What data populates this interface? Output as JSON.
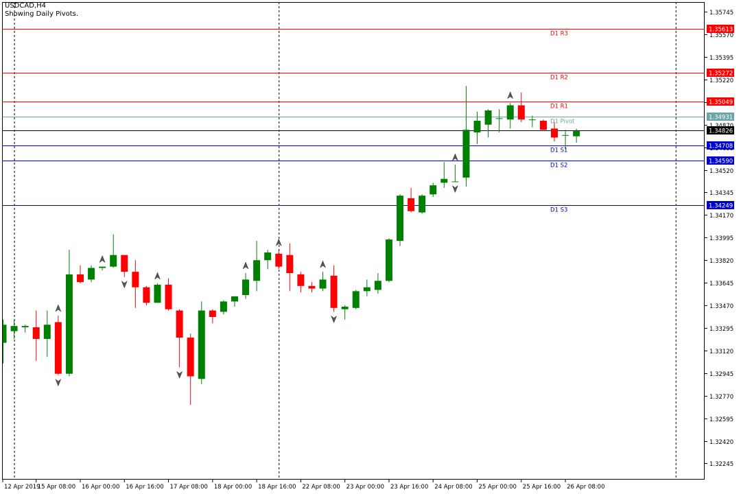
{
  "header": {
    "symbol_timeframe": "USDCAD,H4",
    "subtitle": "Showing Daily Pivots."
  },
  "colors": {
    "bull": "#008000",
    "bear": "#ff0000",
    "resistance": "#ff0000",
    "pivot": "#6aa6a6",
    "support": "#0000cc",
    "current_price": "#000000",
    "frame": "#000000"
  },
  "chart_data": {
    "type": "candlestick",
    "symbol": "USDCAD",
    "timeframe": "H4",
    "ylim": [
      1.3212,
      1.3582
    ],
    "y_ticks": [
      "1.35745",
      "1.35570",
      "1.35395",
      "1.35220",
      "1.35045",
      "1.34870",
      "1.34695",
      "1.34520",
      "1.34345",
      "1.34170",
      "1.33995",
      "1.33820",
      "1.33645",
      "1.33470",
      "1.33295",
      "1.33120",
      "1.32945",
      "1.32770",
      "1.32595",
      "1.32420",
      "1.32245"
    ],
    "x_ticks": [
      {
        "label": "12 Apr 2019",
        "bar": -1
      },
      {
        "label": "15 Apr 08:00",
        "bar": 3
      },
      {
        "label": "16 Apr 00:00",
        "bar": 7
      },
      {
        "label": "16 Apr 16:00",
        "bar": 11
      },
      {
        "label": "17 Apr 08:00",
        "bar": 15
      },
      {
        "label": "18 Apr 00:00",
        "bar": 19
      },
      {
        "label": "18 Apr 16:00",
        "bar": 23
      },
      {
        "label": "22 Apr 08:00",
        "bar": 27
      },
      {
        "label": "23 Apr 00:00",
        "bar": 31
      },
      {
        "label": "23 Apr 16:00",
        "bar": 35
      },
      {
        "label": "24 Apr 08:00",
        "bar": 39
      },
      {
        "label": "25 Apr 00:00",
        "bar": 43
      },
      {
        "label": "25 Apr 16:00",
        "bar": 47
      },
      {
        "label": "26 Apr 08:00",
        "bar": 51
      }
    ],
    "separator_bars": [
      1,
      25,
      61
    ],
    "candles": [
      {
        "o": 1.3318,
        "h": 1.3336,
        "l": 1.3302,
        "c": 1.3332
      },
      {
        "o": 1.3327,
        "h": 1.3336,
        "l": 1.3321,
        "c": 1.3331
      },
      {
        "o": 1.333,
        "h": 1.3332,
        "l": 1.3326,
        "c": 1.3331
      },
      {
        "o": 1.333,
        "h": 1.3343,
        "l": 1.3304,
        "c": 1.3321
      },
      {
        "o": 1.3321,
        "h": 1.3343,
        "l": 1.3307,
        "c": 1.3332
      },
      {
        "o": 1.3334,
        "h": 1.3339,
        "l": 1.3293,
        "c": 1.3294
      },
      {
        "o": 1.3294,
        "h": 1.339,
        "l": 1.3292,
        "c": 1.3371
      },
      {
        "o": 1.3371,
        "h": 1.3378,
        "l": 1.3364,
        "c": 1.3365
      },
      {
        "o": 1.3367,
        "h": 1.3378,
        "l": 1.3365,
        "c": 1.3376
      },
      {
        "o": 1.3376,
        "h": 1.3377,
        "l": 1.3374,
        "c": 1.3377
      },
      {
        "o": 1.3377,
        "h": 1.3402,
        "l": 1.3376,
        "c": 1.3386
      },
      {
        "o": 1.3386,
        "h": 1.3386,
        "l": 1.3369,
        "c": 1.3373
      },
      {
        "o": 1.3373,
        "h": 1.3382,
        "l": 1.3345,
        "c": 1.3361
      },
      {
        "o": 1.3361,
        "h": 1.3362,
        "l": 1.3347,
        "c": 1.3349
      },
      {
        "o": 1.3349,
        "h": 1.3364,
        "l": 1.3349,
        "c": 1.3363
      },
      {
        "o": 1.3363,
        "h": 1.3368,
        "l": 1.3343,
        "c": 1.3344
      },
      {
        "o": 1.3343,
        "h": 1.3344,
        "l": 1.3299,
        "c": 1.3322
      },
      {
        "o": 1.3322,
        "h": 1.3325,
        "l": 1.327,
        "c": 1.3292
      },
      {
        "o": 1.329,
        "h": 1.335,
        "l": 1.3286,
        "c": 1.3343
      },
      {
        "o": 1.3343,
        "h": 1.3344,
        "l": 1.3333,
        "c": 1.3338
      },
      {
        "o": 1.3342,
        "h": 1.3351,
        "l": 1.334,
        "c": 1.335
      },
      {
        "o": 1.335,
        "h": 1.3354,
        "l": 1.3346,
        "c": 1.3354
      },
      {
        "o": 1.3355,
        "h": 1.3372,
        "l": 1.3352,
        "c": 1.3367
      },
      {
        "o": 1.3366,
        "h": 1.3397,
        "l": 1.3358,
        "c": 1.3382
      },
      {
        "o": 1.3382,
        "h": 1.339,
        "l": 1.3375,
        "c": 1.3388
      },
      {
        "o": 1.3387,
        "h": 1.339,
        "l": 1.3375,
        "c": 1.3377
      },
      {
        "o": 1.3386,
        "h": 1.3395,
        "l": 1.3358,
        "c": 1.3372
      },
      {
        "o": 1.3371,
        "h": 1.3373,
        "l": 1.3357,
        "c": 1.3362
      },
      {
        "o": 1.3362,
        "h": 1.3365,
        "l": 1.3357,
        "c": 1.336
      },
      {
        "o": 1.336,
        "h": 1.3373,
        "l": 1.3358,
        "c": 1.3367
      },
      {
        "o": 1.337,
        "h": 1.3378,
        "l": 1.3342,
        "c": 1.3345
      },
      {
        "o": 1.3344,
        "h": 1.3347,
        "l": 1.3336,
        "c": 1.3346
      },
      {
        "o": 1.3345,
        "h": 1.3359,
        "l": 1.3344,
        "c": 1.3358
      },
      {
        "o": 1.3358,
        "h": 1.3367,
        "l": 1.3354,
        "c": 1.3361
      },
      {
        "o": 1.3359,
        "h": 1.3372,
        "l": 1.3356,
        "c": 1.3366
      },
      {
        "o": 1.3366,
        "h": 1.3399,
        "l": 1.3365,
        "c": 1.3398
      },
      {
        "o": 1.3397,
        "h": 1.3433,
        "l": 1.3393,
        "c": 1.3432
      },
      {
        "o": 1.343,
        "h": 1.3438,
        "l": 1.3419,
        "c": 1.342
      },
      {
        "o": 1.3419,
        "h": 1.3433,
        "l": 1.3418,
        "c": 1.3432
      },
      {
        "o": 1.3433,
        "h": 1.3442,
        "l": 1.3431,
        "c": 1.344
      },
      {
        "o": 1.3442,
        "h": 1.3458,
        "l": 1.3438,
        "c": 1.3445
      },
      {
        "o": 1.3443,
        "h": 1.3456,
        "l": 1.3443,
        "c": 1.3443
      },
      {
        "o": 1.3446,
        "h": 1.3517,
        "l": 1.3439,
        "c": 1.3483
      },
      {
        "o": 1.3481,
        "h": 1.3497,
        "l": 1.3472,
        "c": 1.349
      },
      {
        "o": 1.3487,
        "h": 1.3499,
        "l": 1.3477,
        "c": 1.3498
      },
      {
        "o": 1.3492,
        "h": 1.3499,
        "l": 1.3481,
        "c": 1.3492
      },
      {
        "o": 1.3491,
        "h": 1.3504,
        "l": 1.3484,
        "c": 1.3502
      },
      {
        "o": 1.3502,
        "h": 1.3512,
        "l": 1.3489,
        "c": 1.3491
      },
      {
        "o": 1.3491,
        "h": 1.3494,
        "l": 1.3485,
        "c": 1.3491
      },
      {
        "o": 1.349,
        "h": 1.3491,
        "l": 1.3483,
        "c": 1.3483
      },
      {
        "o": 1.3484,
        "h": 1.3489,
        "l": 1.3474,
        "c": 1.3477
      },
      {
        "o": 1.3479,
        "h": 1.3483,
        "l": 1.3468,
        "c": 1.3479
      },
      {
        "o": 1.3478,
        "h": 1.3484,
        "l": 1.3473,
        "c": 1.3482
      }
    ],
    "fractals": [
      {
        "bar": -1,
        "type": "down"
      },
      {
        "bar": 5,
        "type": "up"
      },
      {
        "bar": 5,
        "type": "down"
      },
      {
        "bar": 9,
        "type": "up"
      },
      {
        "bar": 11,
        "type": "down"
      },
      {
        "bar": 14,
        "type": "up"
      },
      {
        "bar": 16,
        "type": "down"
      },
      {
        "bar": 22,
        "type": "up"
      },
      {
        "bar": 25,
        "type": "up"
      },
      {
        "bar": 29,
        "type": "up"
      },
      {
        "bar": 30,
        "type": "down"
      },
      {
        "bar": 41,
        "type": "up"
      },
      {
        "bar": 41,
        "type": "down"
      },
      {
        "bar": 46,
        "type": "up"
      }
    ],
    "pivot_levels": [
      {
        "name": "D1 R3",
        "value": 1.35613,
        "label": "1.35613",
        "kind": "resistance"
      },
      {
        "name": "D1 R2",
        "value": 1.35272,
        "label": "1.35272",
        "kind": "resistance"
      },
      {
        "name": "D1 R1",
        "value": 1.35049,
        "label": "1.35049",
        "kind": "resistance"
      },
      {
        "name": "D1 Pivot",
        "value": 1.34931,
        "label": "1.34931",
        "kind": "pivot"
      },
      {
        "name": "D1 S1",
        "value": 1.34708,
        "label": "1.34708",
        "kind": "support"
      },
      {
        "name": "D1 S2",
        "value": 1.3459,
        "label": "1.34590",
        "kind": "support"
      },
      {
        "name": "D1 S3",
        "value": 1.34249,
        "label": "1.34249",
        "kind": "support"
      }
    ],
    "current_price": {
      "value": 1.34826,
      "label": "1.34826"
    }
  }
}
